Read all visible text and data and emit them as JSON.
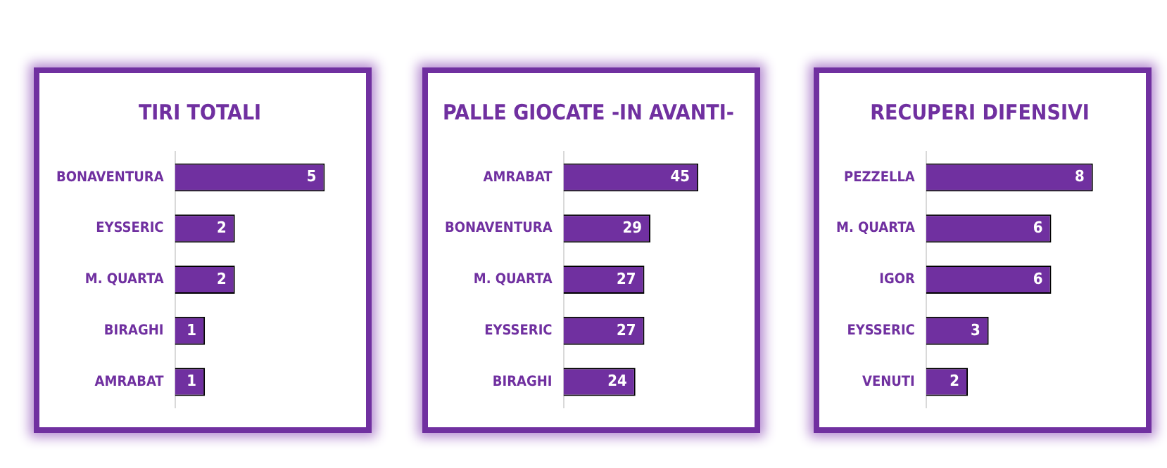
{
  "chart_data": [
    {
      "type": "bar",
      "orientation": "horizontal",
      "title": "TIRI TOTALI",
      "categories": [
        "BONAVENTURA",
        "EYSSERIC",
        "M. QUARTA",
        "BIRAGHI",
        "AMRABAT"
      ],
      "values": [
        5,
        2,
        2,
        1,
        1
      ],
      "color": "#7030a0",
      "data_labels": true,
      "grid": false,
      "legend": false,
      "tick_labels": "y"
    },
    {
      "type": "bar",
      "orientation": "horizontal",
      "title": "PALLE GIOCATE -IN AVANTI-",
      "categories": [
        "AMRABAT",
        "BONAVENTURA",
        "M. QUARTA",
        "EYSSERIC",
        "BIRAGHI"
      ],
      "values": [
        45,
        29,
        27,
        27,
        24
      ],
      "color": "#7030a0",
      "data_labels": true,
      "grid": false,
      "legend": false,
      "tick_labels": "y"
    },
    {
      "type": "bar",
      "orientation": "horizontal",
      "title": "RECUPERI DIFENSIVI",
      "categories": [
        "PEZZELLA",
        "M. QUARTA",
        "IGOR",
        "EYSSERIC",
        "VENUTI"
      ],
      "values": [
        8,
        6,
        6,
        3,
        2
      ],
      "color": "#7030a0",
      "data_labels": true,
      "grid": false,
      "legend": false,
      "tick_labels": "y"
    }
  ]
}
